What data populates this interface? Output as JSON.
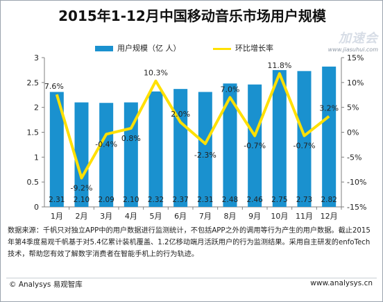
{
  "chart_data": {
    "type": "bar+line",
    "title": "2015年1-12月中国移动音乐市场用户规模",
    "categories": [
      "1月",
      "2月",
      "3月",
      "4月",
      "5月",
      "6月",
      "7月",
      "8月",
      "9月",
      "10月",
      "11月",
      "12月"
    ],
    "series": [
      {
        "name": "用户规模（亿 人）",
        "type": "bar",
        "axis": "left",
        "values": [
          2.31,
          2.1,
          2.09,
          2.1,
          2.32,
          2.37,
          2.31,
          2.48,
          2.46,
          2.75,
          2.73,
          2.82
        ],
        "labels": [
          "2.31",
          "2.10",
          "2.09",
          "2.10",
          "2.32",
          "2.37",
          "2.31",
          "2.48",
          "2.46",
          "2.75",
          "2.73",
          "2.82"
        ],
        "color": "#1a91cf"
      },
      {
        "name": "环比增长率",
        "type": "line",
        "axis": "right",
        "values": [
          7.6,
          -9.2,
          -0.4,
          0.8,
          10.3,
          2.0,
          -2.3,
          7.0,
          -0.7,
          11.8,
          -0.7,
          3.2
        ],
        "labels": [
          "7.6%",
          "-9.2%",
          "-0.4%",
          "0.8%",
          "10.3%",
          "2.0%",
          "-2.3%",
          "7.0%",
          "-0.7%",
          "11.8%",
          "-0.7%",
          "3.2%"
        ],
        "color": "#ffe000"
      }
    ],
    "y_left": {
      "min": 0,
      "max": 3,
      "ticks": [
        "0",
        "0.5",
        "1",
        "1.5",
        "2",
        "2.5",
        "3"
      ],
      "tick_values": [
        0,
        0.5,
        1,
        1.5,
        2,
        2.5,
        3
      ]
    },
    "y_right": {
      "min": -15,
      "max": 15,
      "ticks": [
        "-15%",
        "-10%",
        "-5%",
        "0%",
        "5%",
        "10%",
        "15%"
      ],
      "tick_values": [
        -15,
        -10,
        -5,
        0,
        5,
        10,
        15
      ]
    },
    "grid": false,
    "legend": "top"
  },
  "note": "数据来源：千帆只对独立APP中的用户数据进行监测统计，不包括APP之外的调用等行为产生的用户数据。截止2015年第4季度易观千帆基于对5.4亿累计装机覆盖、1.2亿移动端月活跃用户的行为监测结果。采用自主研发的enfoTech技术，帮助您有效了解数字消费者在智能手机上的行为轨迹。",
  "copyright": "© Analysys 易观智库",
  "site": "www.analysys.cn",
  "watermark": {
    "logo": "加速会",
    "url": "www.jiasuhui.com"
  },
  "colors": {
    "bar": "#1a91cf",
    "line": "#ffe000",
    "axis": "#7f7f7f",
    "text": "#222222"
  }
}
